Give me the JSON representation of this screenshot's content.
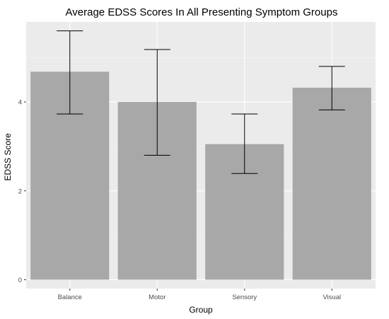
{
  "chart_data": {
    "type": "bar",
    "title": "Average EDSS Scores In All Presenting Symptom Groups",
    "xlabel": "Group",
    "ylabel": "EDSS Score",
    "categories": [
      "Balance",
      "Motor",
      "Sensory",
      "Visual"
    ],
    "values": [
      4.68,
      4.0,
      3.05,
      4.32
    ],
    "error_low": [
      3.73,
      2.8,
      2.39,
      3.82
    ],
    "error_high": [
      5.6,
      5.18,
      3.73,
      4.8
    ],
    "ylim": [
      -0.2,
      5.8
    ],
    "yticks": [
      0,
      2,
      4
    ],
    "grid": true,
    "colors": {
      "bar": "#a8a8a8",
      "panel": "#ebebeb",
      "grid": "#ffffff",
      "errorbar": "#000000"
    }
  }
}
